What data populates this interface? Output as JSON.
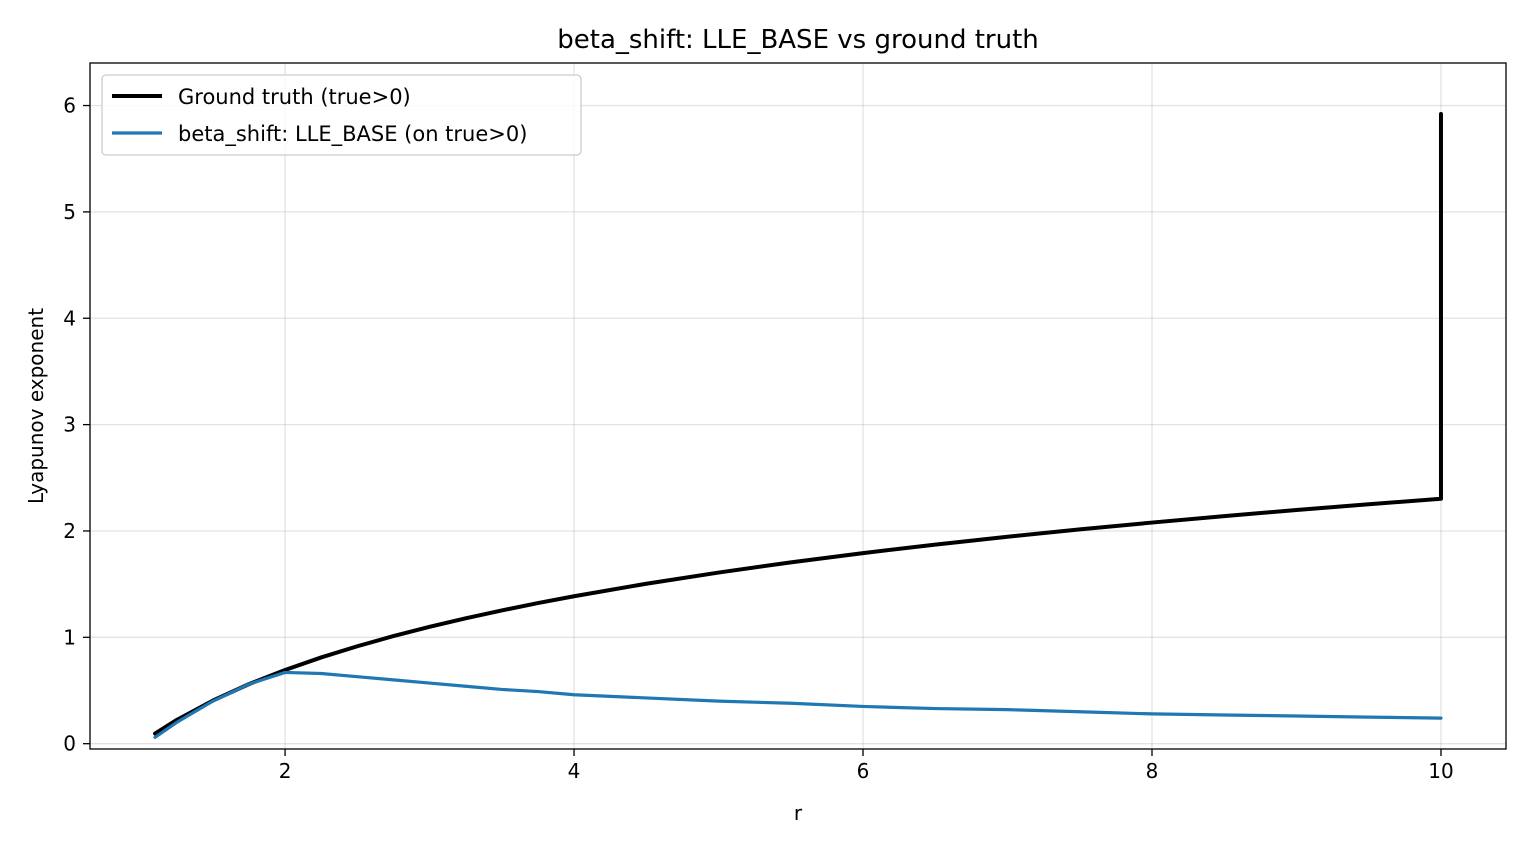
{
  "chart_data": {
    "type": "line",
    "title": "beta_shift: LLE_BASE vs ground truth",
    "xlabel": "r",
    "ylabel": "Lyapunov exponent",
    "xlim": [
      0.65,
      10.45
    ],
    "ylim": [
      -0.05,
      6.4
    ],
    "xticks": [
      2,
      4,
      6,
      8,
      10
    ],
    "yticks": [
      0,
      1,
      2,
      3,
      4,
      5,
      6
    ],
    "grid": true,
    "legend_position": "top-left",
    "series": [
      {
        "name": "Ground truth (true>0)",
        "color": "#000000",
        "x": [
          1.1,
          1.25,
          1.5,
          1.75,
          2.0,
          2.25,
          2.5,
          2.75,
          3.0,
          3.25,
          3.5,
          3.75,
          4.0,
          4.5,
          5.0,
          5.5,
          6.0,
          6.5,
          7.0,
          7.5,
          8.0,
          8.5,
          9.0,
          9.5,
          10.0,
          10.0
        ],
        "y": [
          0.095,
          0.223,
          0.405,
          0.56,
          0.693,
          0.811,
          0.916,
          1.012,
          1.099,
          1.179,
          1.253,
          1.322,
          1.386,
          1.504,
          1.609,
          1.705,
          1.792,
          1.872,
          1.946,
          2.015,
          2.079,
          2.14,
          2.197,
          2.251,
          2.303,
          5.92
        ]
      },
      {
        "name": "beta_shift: LLE_BASE (on true>0)",
        "color": "#1f77b4",
        "x": [
          1.1,
          1.25,
          1.5,
          1.75,
          2.0,
          2.25,
          2.5,
          2.75,
          3.0,
          3.25,
          3.5,
          3.75,
          4.0,
          4.5,
          5.0,
          5.5,
          6.0,
          6.5,
          7.0,
          7.5,
          8.0,
          8.5,
          9.0,
          9.5,
          10.0
        ],
        "y": [
          0.06,
          0.2,
          0.4,
          0.56,
          0.67,
          0.66,
          0.63,
          0.6,
          0.57,
          0.54,
          0.51,
          0.49,
          0.46,
          0.43,
          0.4,
          0.38,
          0.35,
          0.33,
          0.32,
          0.3,
          0.28,
          0.27,
          0.26,
          0.25,
          0.24
        ]
      }
    ]
  }
}
